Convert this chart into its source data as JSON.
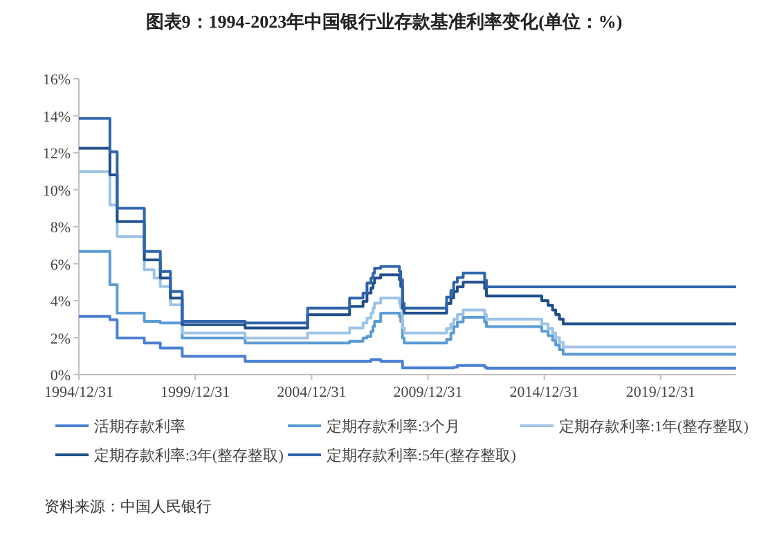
{
  "chart_data": {
    "type": "step",
    "title": "图表9：1994-2023年中国银行业存款基准利率变化(单位：%)",
    "x": [
      "1994-12-31",
      "1996-05-01",
      "1996-08-23",
      "1997-10-23",
      "1998-03-25",
      "1998-07-01",
      "1998-12-07",
      "1999-06-10",
      "2002-02-21",
      "2004-10-29",
      "2006-08-19",
      "2007-03-18",
      "2007-05-19",
      "2007-07-21",
      "2007-08-22",
      "2007-09-15",
      "2007-12-21",
      "2008-10-09",
      "2008-10-30",
      "2008-11-27",
      "2008-12-23",
      "2010-10-20",
      "2010-12-26",
      "2011-02-09",
      "2011-04-06",
      "2011-07-07",
      "2012-06-08",
      "2012-07-06",
      "2014-11-22",
      "2015-03-01",
      "2015-05-11",
      "2015-06-28",
      "2015-08-26",
      "2015-10-24",
      "2023-03-31"
    ],
    "series": [
      {
        "name": "活期存款利率",
        "color": "#4a7fd4",
        "values": [
          3.15,
          2.97,
          1.98,
          1.71,
          1.71,
          1.44,
          1.44,
          0.99,
          0.72,
          0.72,
          0.72,
          0.72,
          0.72,
          0.81,
          0.81,
          0.81,
          0.72,
          0.72,
          0.72,
          0.36,
          0.36,
          0.36,
          0.36,
          0.4,
          0.5,
          0.5,
          0.4,
          0.35,
          0.35,
          0.35,
          0.35,
          0.35,
          0.35,
          0.35,
          0.35
        ]
      },
      {
        "name": "定期存款利率:3个月",
        "color": "#5b9bd5",
        "values": [
          6.66,
          4.86,
          3.33,
          2.88,
          2.88,
          2.79,
          2.79,
          1.98,
          1.71,
          1.71,
          1.8,
          1.98,
          2.07,
          2.34,
          2.61,
          2.88,
          3.33,
          3.15,
          2.88,
          1.98,
          1.71,
          1.91,
          2.25,
          2.6,
          2.85,
          3.1,
          2.85,
          2.6,
          2.35,
          2.1,
          1.85,
          1.6,
          1.35,
          1.1,
          1.1
        ]
      },
      {
        "name": "定期存款利率:1年(整存整取)",
        "color": "#9dc3e6",
        "values": [
          10.98,
          9.18,
          7.47,
          5.67,
          5.22,
          4.77,
          3.78,
          2.25,
          1.98,
          2.25,
          2.52,
          2.79,
          3.06,
          3.33,
          3.6,
          3.87,
          4.14,
          3.87,
          3.6,
          2.52,
          2.25,
          2.5,
          2.75,
          3.0,
          3.25,
          3.5,
          3.25,
          3.0,
          2.75,
          2.5,
          2.25,
          2.0,
          1.75,
          1.5,
          1.5
        ]
      },
      {
        "name": "定期存款利率:3年(整存整取)",
        "color": "#1f4e8c",
        "values": [
          12.24,
          10.8,
          8.28,
          6.21,
          6.21,
          5.22,
          4.14,
          2.7,
          2.52,
          3.24,
          3.69,
          3.96,
          4.41,
          4.68,
          4.95,
          5.22,
          5.4,
          5.13,
          4.77,
          3.6,
          3.33,
          3.85,
          4.15,
          4.5,
          4.75,
          5.0,
          4.65,
          4.25,
          4.0,
          3.75,
          3.5,
          3.25,
          3.0,
          2.75,
          2.75
        ]
      },
      {
        "name": "定期存款利率:5年(整存整取)",
        "color": "#2f64ad",
        "values": [
          13.86,
          12.06,
          9.0,
          6.66,
          6.66,
          5.58,
          4.5,
          2.88,
          2.79,
          3.6,
          4.14,
          4.41,
          4.95,
          5.22,
          5.49,
          5.76,
          5.85,
          5.58,
          5.13,
          3.87,
          3.6,
          4.2,
          4.55,
          5.0,
          5.25,
          5.5,
          5.1,
          4.75,
          4.75,
          4.75,
          4.75,
          4.75,
          4.75,
          4.75,
          4.75
        ]
      }
    ],
    "xlim": [
      "1994-12-31",
      "2023-03-31"
    ],
    "xticks": [
      {
        "value": "1994-12-31",
        "label": "1994/12/31"
      },
      {
        "value": "1999-12-31",
        "label": "1999/12/31"
      },
      {
        "value": "2004-12-31",
        "label": "2004/12/31"
      },
      {
        "value": "2009-12-31",
        "label": "2009/12/31"
      },
      {
        "value": "2014-12-31",
        "label": "2014/12/31"
      },
      {
        "value": "2019-12-31",
        "label": "2019/12/31"
      }
    ],
    "ylim": [
      0,
      16
    ],
    "yticks": [
      {
        "value": 0,
        "label": "0%"
      },
      {
        "value": 2,
        "label": "2%"
      },
      {
        "value": 4,
        "label": "4%"
      },
      {
        "value": 6,
        "label": "6%"
      },
      {
        "value": 8,
        "label": "8%"
      },
      {
        "value": 10,
        "label": "10%"
      },
      {
        "value": 12,
        "label": "12%"
      },
      {
        "value": 14,
        "label": "14%"
      },
      {
        "value": 16,
        "label": "16%"
      }
    ],
    "legend": "bottom",
    "annotations": [
      "资料来源：中国人民银行"
    ]
  }
}
